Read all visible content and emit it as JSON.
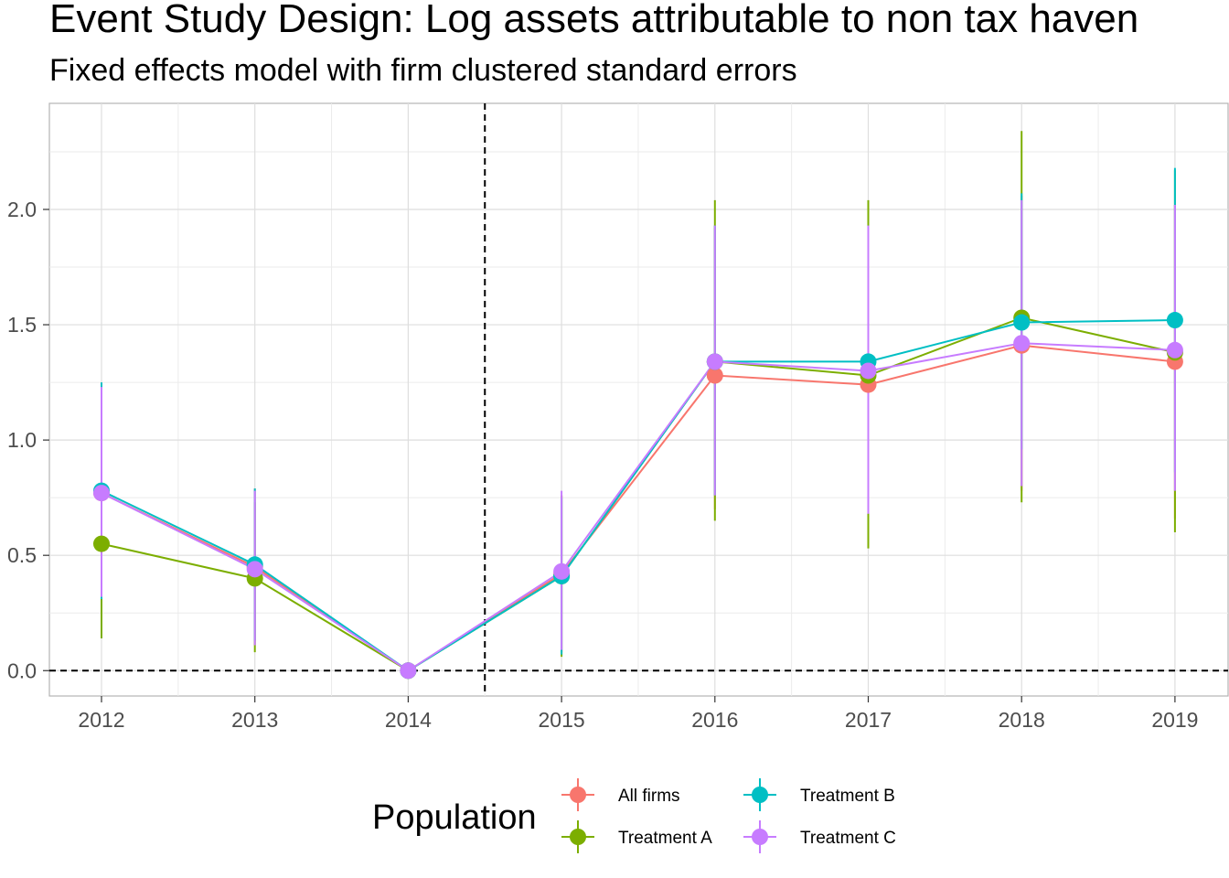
{
  "chart_data": {
    "type": "line",
    "title": "Event Study Design: Log assets attributable to non tax haven",
    "subtitle": "Fixed effects model with firm clustered standard errors",
    "xlabel": "",
    "ylabel": "",
    "x": [
      2012,
      2013,
      2014,
      2015,
      2016,
      2017,
      2018,
      2019
    ],
    "x_tick_labels": [
      "2012",
      "2013",
      "2014",
      "2015",
      "2016",
      "2017",
      "2018",
      "2019"
    ],
    "ylim": [
      -0.11,
      2.46
    ],
    "y_ticks": [
      0.0,
      0.5,
      1.0,
      1.5,
      2.0
    ],
    "y_tick_labels": [
      "0.0",
      "0.5",
      "1.0",
      "1.5",
      "2.0"
    ],
    "reference_lines": {
      "vertical_x": 2014.5,
      "horizontal_y": 0
    },
    "grid": true,
    "legend": {
      "title": "Population",
      "position": "bottom"
    },
    "series": [
      {
        "name": "All firms",
        "color": "#F8766D",
        "values": [
          0.77,
          0.45,
          0.0,
          0.42,
          1.28,
          1.24,
          1.41,
          1.34
        ],
        "lower": [
          0.3,
          0.11,
          0.0,
          0.08,
          0.7,
          0.58,
          0.78,
          0.66
        ],
        "upper": [
          1.24,
          0.79,
          0.0,
          0.76,
          1.92,
          1.92,
          2.06,
          2.02
        ]
      },
      {
        "name": "Treatment A",
        "color": "#7CAE00",
        "values": [
          0.55,
          0.4,
          0.0,
          0.41,
          1.34,
          1.28,
          1.53,
          1.38
        ],
        "lower": [
          0.14,
          0.08,
          0.0,
          0.06,
          0.65,
          0.53,
          0.73,
          0.6
        ],
        "upper": [
          0.97,
          0.73,
          0.0,
          0.76,
          2.04,
          2.04,
          2.34,
          2.17
        ]
      },
      {
        "name": "Treatment B",
        "color": "#00BFC4",
        "values": [
          0.78,
          0.46,
          0.0,
          0.41,
          1.34,
          1.34,
          1.51,
          1.52
        ],
        "lower": [
          0.31,
          0.13,
          0.0,
          0.07,
          0.76,
          0.75,
          0.96,
          0.86
        ],
        "upper": [
          1.25,
          0.79,
          0.0,
          0.75,
          1.93,
          1.93,
          2.07,
          2.18
        ]
      },
      {
        "name": "Treatment C",
        "color": "#C77CFF",
        "values": [
          0.77,
          0.44,
          0.0,
          0.43,
          1.34,
          1.3,
          1.42,
          1.39
        ],
        "lower": [
          0.32,
          0.11,
          0.0,
          0.09,
          0.76,
          0.68,
          0.8,
          0.78
        ],
        "upper": [
          1.23,
          0.78,
          0.0,
          0.78,
          1.93,
          1.93,
          2.04,
          2.02
        ]
      }
    ]
  }
}
